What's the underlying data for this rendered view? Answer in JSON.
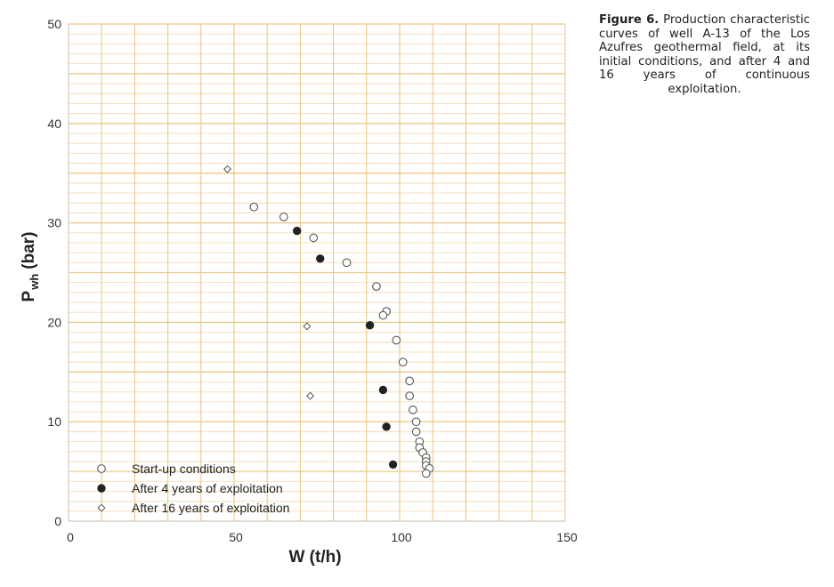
{
  "caption": {
    "label": "Figure 6.",
    "text": "Production characteristic curves of well A-13 of the Los Azufres geothermal field, at its initial conditions, and after 4 and 16 years of continuous exploitation."
  },
  "colors": {
    "grid_minor": "#f7dcae",
    "grid_major": "#efc783",
    "axis": "#c8c8c8",
    "marker": "#222222"
  },
  "chart_data": {
    "type": "scatter",
    "xlabel": "W (t/h)",
    "ylabel_main": "P",
    "ylabel_sub": "wh",
    "ylabel_unit": "(bar)",
    "xlim": [
      0,
      150
    ],
    "ylim": [
      0,
      50
    ],
    "xticks": [
      0,
      50,
      100,
      150
    ],
    "yticks": [
      0,
      10,
      20,
      30,
      40,
      50
    ],
    "grid": true,
    "legend_position": "bottom-left",
    "series": [
      {
        "name": "Start-up conditions",
        "marker": "open-circle",
        "points": [
          [
            56,
            31.6
          ],
          [
            65,
            30.6
          ],
          [
            74,
            28.5
          ],
          [
            84,
            26
          ],
          [
            93,
            23.6
          ],
          [
            96,
            21.1
          ],
          [
            95,
            20.7
          ],
          [
            99,
            18.2
          ],
          [
            101,
            16
          ],
          [
            103,
            14.1
          ],
          [
            103,
            12.6
          ],
          [
            104,
            11.2
          ],
          [
            105,
            10
          ],
          [
            105,
            9
          ],
          [
            106,
            8
          ],
          [
            106,
            7.4
          ],
          [
            107,
            6.9
          ],
          [
            108,
            6.4
          ],
          [
            108,
            6
          ],
          [
            108,
            5.6
          ],
          [
            109,
            5.3
          ],
          [
            108,
            4.8
          ]
        ]
      },
      {
        "name": "After 4 years of exploitation",
        "marker": "filled-circle",
        "points": [
          [
            69,
            29.2
          ],
          [
            76,
            26.4
          ],
          [
            91,
            19.7
          ],
          [
            95,
            13.2
          ],
          [
            96,
            9.5
          ],
          [
            98,
            5.7
          ]
        ]
      },
      {
        "name": "After 16 years of exploitation",
        "marker": "open-diamond",
        "points": [
          [
            48,
            35.4
          ],
          [
            72,
            19.6
          ],
          [
            73,
            12.6
          ]
        ]
      }
    ]
  }
}
